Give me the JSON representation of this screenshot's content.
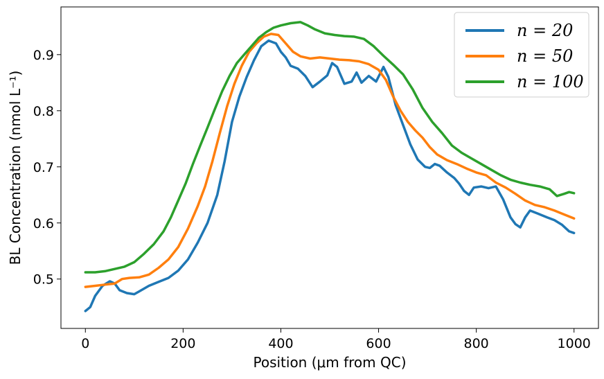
{
  "chart_data": {
    "type": "line",
    "title": "",
    "xlabel": "Position (μm from QC)",
    "ylabel": "BL Concentration (nmol L⁻¹)",
    "xlim": [
      -50,
      1050
    ],
    "ylim": [
      0.412,
      0.985
    ],
    "xticks": [
      0,
      200,
      400,
      600,
      800,
      1000
    ],
    "yticks": [
      0.5,
      0.6,
      0.7,
      0.8,
      0.9
    ],
    "xtick_labels": [
      "0",
      "200",
      "400",
      "600",
      "800",
      "1000"
    ],
    "ytick_labels": [
      "0.5",
      "0.6",
      "0.7",
      "0.8",
      "0.9"
    ],
    "grid": false,
    "legend_position": "top-right",
    "series": [
      {
        "name": "n = 20",
        "color": "#1f77b4",
        "points": [
          [
            0,
            0.443
          ],
          [
            10,
            0.45
          ],
          [
            20,
            0.47
          ],
          [
            35,
            0.488
          ],
          [
            50,
            0.496
          ],
          [
            60,
            0.492
          ],
          [
            70,
            0.48
          ],
          [
            85,
            0.475
          ],
          [
            100,
            0.473
          ],
          [
            110,
            0.478
          ],
          [
            130,
            0.488
          ],
          [
            150,
            0.495
          ],
          [
            170,
            0.502
          ],
          [
            190,
            0.515
          ],
          [
            210,
            0.535
          ],
          [
            230,
            0.565
          ],
          [
            250,
            0.6
          ],
          [
            270,
            0.65
          ],
          [
            285,
            0.71
          ],
          [
            300,
            0.78
          ],
          [
            315,
            0.825
          ],
          [
            330,
            0.86
          ],
          [
            345,
            0.89
          ],
          [
            360,
            0.915
          ],
          [
            375,
            0.925
          ],
          [
            390,
            0.92
          ],
          [
            400,
            0.905
          ],
          [
            410,
            0.895
          ],
          [
            420,
            0.88
          ],
          [
            435,
            0.875
          ],
          [
            450,
            0.862
          ],
          [
            465,
            0.842
          ],
          [
            480,
            0.852
          ],
          [
            495,
            0.863
          ],
          [
            505,
            0.885
          ],
          [
            515,
            0.878
          ],
          [
            530,
            0.848
          ],
          [
            545,
            0.852
          ],
          [
            555,
            0.868
          ],
          [
            565,
            0.85
          ],
          [
            580,
            0.862
          ],
          [
            595,
            0.852
          ],
          [
            610,
            0.878
          ],
          [
            620,
            0.86
          ],
          [
            635,
            0.81
          ],
          [
            650,
            0.775
          ],
          [
            665,
            0.74
          ],
          [
            680,
            0.713
          ],
          [
            695,
            0.7
          ],
          [
            705,
            0.698
          ],
          [
            715,
            0.705
          ],
          [
            725,
            0.702
          ],
          [
            740,
            0.69
          ],
          [
            755,
            0.68
          ],
          [
            765,
            0.67
          ],
          [
            775,
            0.657
          ],
          [
            785,
            0.65
          ],
          [
            795,
            0.663
          ],
          [
            810,
            0.665
          ],
          [
            825,
            0.662
          ],
          [
            840,
            0.665
          ],
          [
            855,
            0.642
          ],
          [
            870,
            0.61
          ],
          [
            880,
            0.598
          ],
          [
            890,
            0.592
          ],
          [
            900,
            0.61
          ],
          [
            910,
            0.622
          ],
          [
            925,
            0.617
          ],
          [
            945,
            0.61
          ],
          [
            960,
            0.605
          ],
          [
            975,
            0.597
          ],
          [
            990,
            0.585
          ],
          [
            1000,
            0.582
          ]
        ]
      },
      {
        "name": "n = 50",
        "color": "#ff7f0e",
        "points": [
          [
            0,
            0.486
          ],
          [
            20,
            0.488
          ],
          [
            40,
            0.49
          ],
          [
            60,
            0.492
          ],
          [
            75,
            0.5
          ],
          [
            90,
            0.502
          ],
          [
            110,
            0.503
          ],
          [
            130,
            0.508
          ],
          [
            150,
            0.52
          ],
          [
            170,
            0.535
          ],
          [
            190,
            0.557
          ],
          [
            210,
            0.59
          ],
          [
            230,
            0.63
          ],
          [
            245,
            0.665
          ],
          [
            260,
            0.71
          ],
          [
            275,
            0.76
          ],
          [
            290,
            0.808
          ],
          [
            305,
            0.848
          ],
          [
            320,
            0.88
          ],
          [
            335,
            0.905
          ],
          [
            350,
            0.92
          ],
          [
            365,
            0.932
          ],
          [
            380,
            0.937
          ],
          [
            395,
            0.935
          ],
          [
            410,
            0.92
          ],
          [
            425,
            0.905
          ],
          [
            440,
            0.897
          ],
          [
            460,
            0.893
          ],
          [
            480,
            0.895
          ],
          [
            500,
            0.893
          ],
          [
            520,
            0.891
          ],
          [
            540,
            0.89
          ],
          [
            560,
            0.888
          ],
          [
            580,
            0.883
          ],
          [
            600,
            0.873
          ],
          [
            615,
            0.855
          ],
          [
            630,
            0.825
          ],
          [
            645,
            0.8
          ],
          [
            660,
            0.78
          ],
          [
            675,
            0.765
          ],
          [
            690,
            0.752
          ],
          [
            705,
            0.735
          ],
          [
            720,
            0.722
          ],
          [
            740,
            0.712
          ],
          [
            760,
            0.705
          ],
          [
            780,
            0.697
          ],
          [
            800,
            0.69
          ],
          [
            820,
            0.685
          ],
          [
            840,
            0.672
          ],
          [
            860,
            0.663
          ],
          [
            880,
            0.652
          ],
          [
            900,
            0.64
          ],
          [
            920,
            0.632
          ],
          [
            940,
            0.628
          ],
          [
            960,
            0.622
          ],
          [
            980,
            0.615
          ],
          [
            1000,
            0.608
          ]
        ]
      },
      {
        "name": "n = 100",
        "color": "#2ca02c",
        "points": [
          [
            0,
            0.512
          ],
          [
            20,
            0.512
          ],
          [
            40,
            0.514
          ],
          [
            60,
            0.518
          ],
          [
            80,
            0.522
          ],
          [
            100,
            0.53
          ],
          [
            120,
            0.545
          ],
          [
            140,
            0.562
          ],
          [
            160,
            0.585
          ],
          [
            175,
            0.61
          ],
          [
            190,
            0.64
          ],
          [
            205,
            0.67
          ],
          [
            220,
            0.705
          ],
          [
            235,
            0.738
          ],
          [
            250,
            0.77
          ],
          [
            265,
            0.803
          ],
          [
            280,
            0.835
          ],
          [
            295,
            0.862
          ],
          [
            310,
            0.885
          ],
          [
            325,
            0.9
          ],
          [
            340,
            0.915
          ],
          [
            355,
            0.93
          ],
          [
            370,
            0.94
          ],
          [
            385,
            0.948
          ],
          [
            400,
            0.952
          ],
          [
            420,
            0.956
          ],
          [
            440,
            0.958
          ],
          [
            455,
            0.952
          ],
          [
            470,
            0.945
          ],
          [
            490,
            0.938
          ],
          [
            510,
            0.935
          ],
          [
            530,
            0.933
          ],
          [
            550,
            0.932
          ],
          [
            570,
            0.928
          ],
          [
            590,
            0.915
          ],
          [
            610,
            0.898
          ],
          [
            630,
            0.882
          ],
          [
            650,
            0.865
          ],
          [
            670,
            0.838
          ],
          [
            690,
            0.805
          ],
          [
            710,
            0.78
          ],
          [
            730,
            0.76
          ],
          [
            750,
            0.738
          ],
          [
            770,
            0.725
          ],
          [
            790,
            0.715
          ],
          [
            810,
            0.705
          ],
          [
            830,
            0.695
          ],
          [
            850,
            0.685
          ],
          [
            870,
            0.677
          ],
          [
            890,
            0.672
          ],
          [
            910,
            0.668
          ],
          [
            930,
            0.665
          ],
          [
            950,
            0.66
          ],
          [
            965,
            0.648
          ],
          [
            980,
            0.652
          ],
          [
            990,
            0.655
          ],
          [
            1000,
            0.653
          ]
        ]
      }
    ]
  }
}
